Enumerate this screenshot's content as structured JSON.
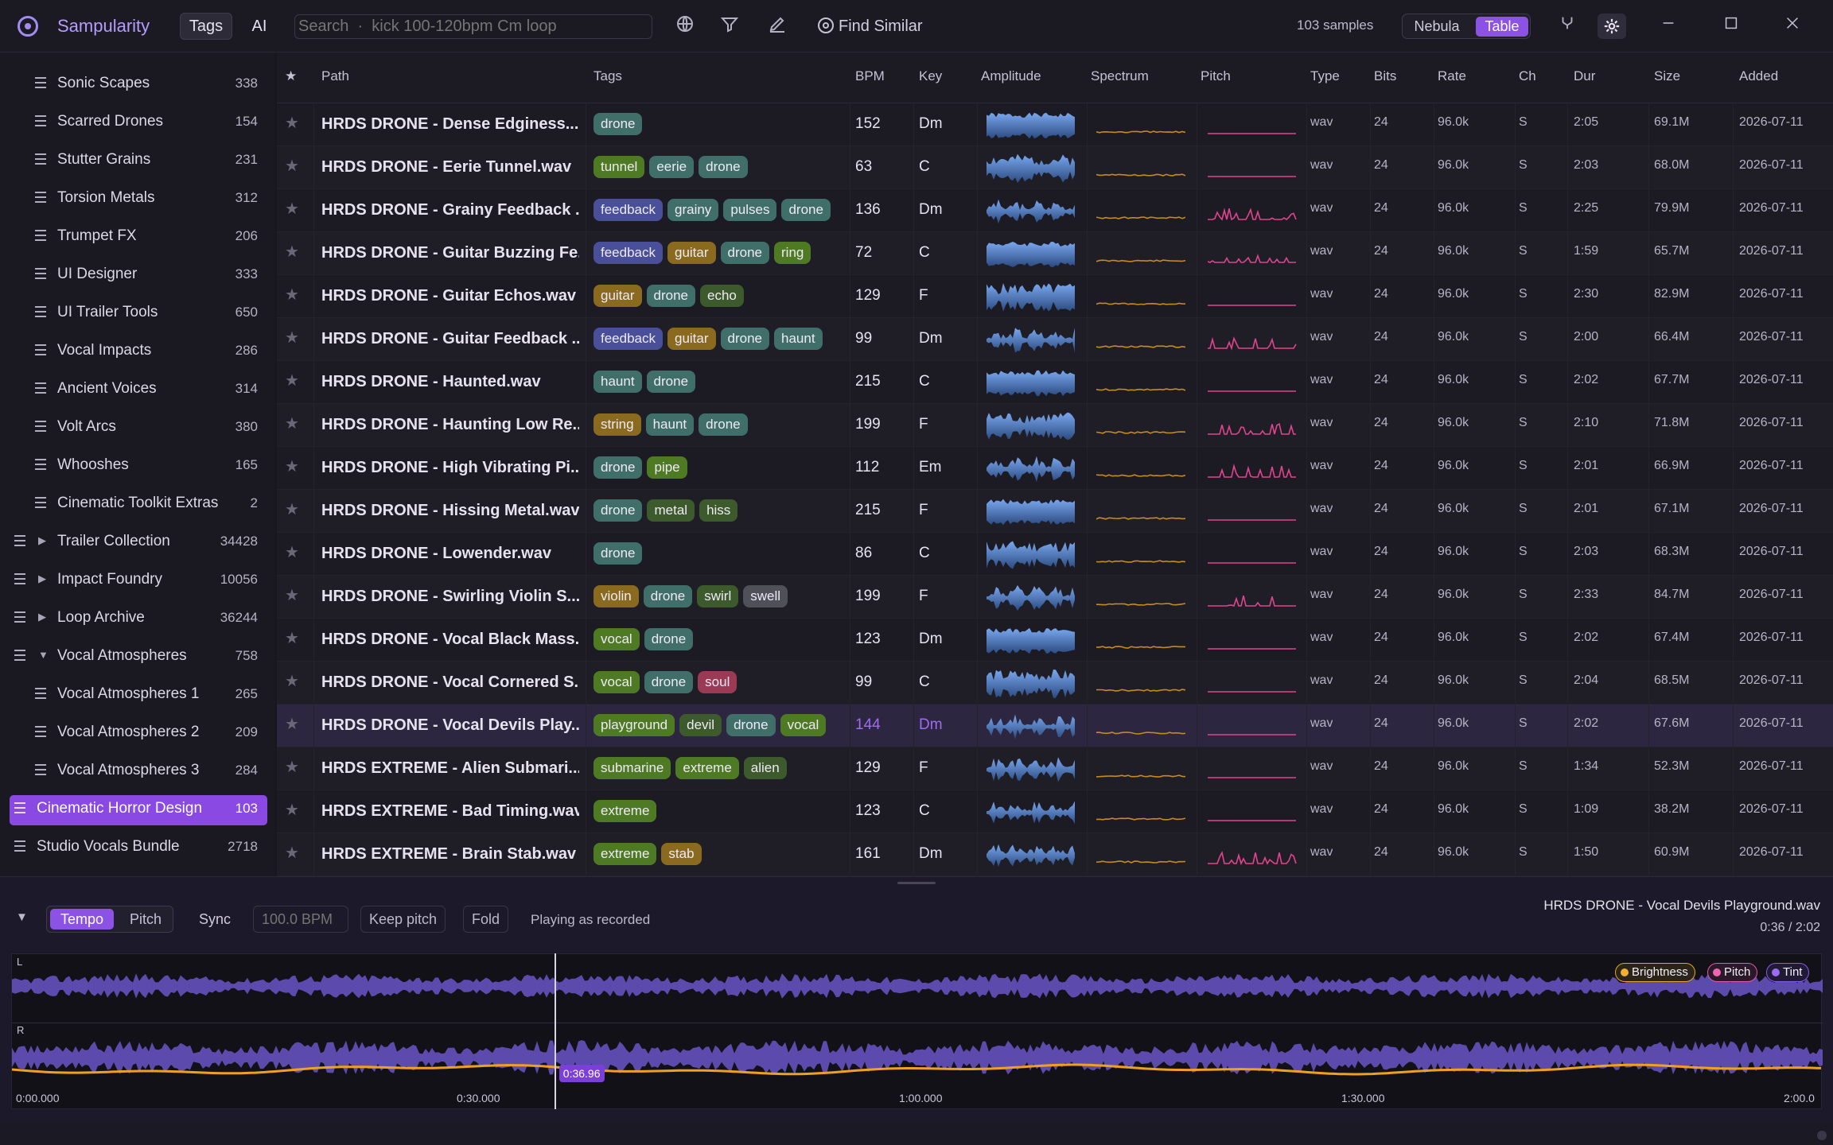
{
  "app": {
    "title": "Sampularity",
    "tags_button": "Tags",
    "ai_button": "AI",
    "search_placeholder": "Search  ·  kick 100-120bpm Cm loop",
    "find_similar": "Find Similar",
    "samples_count": "103 samples",
    "view_nebula": "Nebula",
    "view_table": "Table"
  },
  "sidebar": {
    "items": [
      {
        "label": "Sonic Scapes",
        "count": "338",
        "level": 2
      },
      {
        "label": "Scarred Drones",
        "count": "154",
        "level": 2
      },
      {
        "label": "Stutter Grains",
        "count": "231",
        "level": 2
      },
      {
        "label": "Torsion Metals",
        "count": "312",
        "level": 2
      },
      {
        "label": "Trumpet FX",
        "count": "206",
        "level": 2
      },
      {
        "label": "UI Designer",
        "count": "333",
        "level": 2
      },
      {
        "label": "UI Trailer Tools",
        "count": "650",
        "level": 2
      },
      {
        "label": "Vocal Impacts",
        "count": "286",
        "level": 2
      },
      {
        "label": "Ancient Voices",
        "count": "314",
        "level": 2
      },
      {
        "label": "Volt Arcs",
        "count": "380",
        "level": 2
      },
      {
        "label": "Whooshes",
        "count": "165",
        "level": 2
      },
      {
        "label": "Cinematic Toolkit Extras",
        "count": "2",
        "level": 2
      },
      {
        "label": "Trailer Collection",
        "count": "34428",
        "level": 1,
        "caret": "▶"
      },
      {
        "label": "Impact Foundry",
        "count": "10056",
        "level": 1,
        "caret": "▶"
      },
      {
        "label": "Loop Archive",
        "count": "36244",
        "level": 1,
        "caret": "▶"
      },
      {
        "label": "Vocal Atmospheres",
        "count": "758",
        "level": 1,
        "caret": "▼"
      },
      {
        "label": "Vocal Atmospheres 1",
        "count": "265",
        "level": 2
      },
      {
        "label": "Vocal Atmospheres 2",
        "count": "209",
        "level": 2
      },
      {
        "label": "Vocal Atmospheres 3",
        "count": "284",
        "level": 2
      },
      {
        "label": "Cinematic Horror Design",
        "count": "103",
        "level": 0,
        "active": true
      },
      {
        "label": "Studio Vocals Bundle",
        "count": "2718",
        "level": 0
      }
    ]
  },
  "table": {
    "columns": [
      "★",
      "Path",
      "Tags",
      "BPM",
      "Key",
      "Amplitude",
      "Spectrum",
      "Pitch",
      "Type",
      "Bits",
      "Rate",
      "Ch",
      "Dur",
      "Size",
      "Added"
    ],
    "rows": [
      {
        "path": "HRDS DRONE - Dense Edginess....",
        "tags": [
          "drone"
        ],
        "bpm": "152",
        "key": "Dm",
        "type": "wav",
        "bits": "24",
        "rate": "96.0k",
        "ch": "S",
        "dur": "2:05",
        "size": "69.1M",
        "added": "2026-07-11"
      },
      {
        "path": "HRDS DRONE - Eerie Tunnel.wav",
        "tags": [
          "tunnel",
          "eerie",
          "drone"
        ],
        "bpm": "63",
        "key": "C",
        "type": "wav",
        "bits": "24",
        "rate": "96.0k",
        "ch": "S",
        "dur": "2:03",
        "size": "68.0M",
        "added": "2026-07-11"
      },
      {
        "path": "HRDS DRONE - Grainy Feedback ...",
        "tags": [
          "feedback",
          "grainy",
          "pulses",
          "drone"
        ],
        "bpm": "136",
        "key": "Dm",
        "type": "wav",
        "bits": "24",
        "rate": "96.0k",
        "ch": "S",
        "dur": "2:25",
        "size": "79.9M",
        "added": "2026-07-11"
      },
      {
        "path": "HRDS DRONE - Guitar Buzzing Fe...",
        "tags": [
          "feedback",
          "guitar",
          "drone",
          "ring"
        ],
        "bpm": "72",
        "key": "C",
        "type": "wav",
        "bits": "24",
        "rate": "96.0k",
        "ch": "S",
        "dur": "1:59",
        "size": "65.7M",
        "added": "2026-07-11"
      },
      {
        "path": "HRDS DRONE - Guitar Echos.wav",
        "tags": [
          "guitar",
          "drone",
          "echo"
        ],
        "bpm": "129",
        "key": "F",
        "type": "wav",
        "bits": "24",
        "rate": "96.0k",
        "ch": "S",
        "dur": "2:30",
        "size": "82.9M",
        "added": "2026-07-11"
      },
      {
        "path": "HRDS DRONE - Guitar Feedback ...",
        "tags": [
          "feedback",
          "guitar",
          "drone",
          "haunt"
        ],
        "bpm": "99",
        "key": "Dm",
        "type": "wav",
        "bits": "24",
        "rate": "96.0k",
        "ch": "S",
        "dur": "2:00",
        "size": "66.4M",
        "added": "2026-07-11"
      },
      {
        "path": "HRDS DRONE - Haunted.wav",
        "tags": [
          "haunt",
          "drone"
        ],
        "bpm": "215",
        "key": "C",
        "type": "wav",
        "bits": "24",
        "rate": "96.0k",
        "ch": "S",
        "dur": "2:02",
        "size": "67.7M",
        "added": "2026-07-11"
      },
      {
        "path": "HRDS DRONE - Haunting Low Re...",
        "tags": [
          "string",
          "haunt",
          "drone"
        ],
        "bpm": "199",
        "key": "F",
        "type": "wav",
        "bits": "24",
        "rate": "96.0k",
        "ch": "S",
        "dur": "2:10",
        "size": "71.8M",
        "added": "2026-07-11"
      },
      {
        "path": "HRDS DRONE - High Vibrating Pi...",
        "tags": [
          "drone",
          "pipe"
        ],
        "bpm": "112",
        "key": "Em",
        "type": "wav",
        "bits": "24",
        "rate": "96.0k",
        "ch": "S",
        "dur": "2:01",
        "size": "66.9M",
        "added": "2026-07-11"
      },
      {
        "path": "HRDS DRONE - Hissing Metal.wav",
        "tags": [
          "drone",
          "metal",
          "hiss"
        ],
        "bpm": "215",
        "key": "F",
        "type": "wav",
        "bits": "24",
        "rate": "96.0k",
        "ch": "S",
        "dur": "2:01",
        "size": "67.1M",
        "added": "2026-07-11"
      },
      {
        "path": "HRDS DRONE - Lowender.wav",
        "tags": [
          "drone"
        ],
        "bpm": "86",
        "key": "C",
        "type": "wav",
        "bits": "24",
        "rate": "96.0k",
        "ch": "S",
        "dur": "2:03",
        "size": "68.3M",
        "added": "2026-07-11"
      },
      {
        "path": "HRDS DRONE - Swirling Violin S...",
        "tags": [
          "violin",
          "drone",
          "swirl",
          "swell"
        ],
        "bpm": "199",
        "key": "F",
        "type": "wav",
        "bits": "24",
        "rate": "96.0k",
        "ch": "S",
        "dur": "2:33",
        "size": "84.7M",
        "added": "2026-07-11"
      },
      {
        "path": "HRDS DRONE - Vocal Black Mass...",
        "tags": [
          "vocal",
          "drone"
        ],
        "bpm": "123",
        "key": "Dm",
        "type": "wav",
        "bits": "24",
        "rate": "96.0k",
        "ch": "S",
        "dur": "2:02",
        "size": "67.4M",
        "added": "2026-07-11"
      },
      {
        "path": "HRDS DRONE - Vocal Cornered S...",
        "tags": [
          "vocal",
          "drone",
          "soul"
        ],
        "bpm": "99",
        "key": "C",
        "type": "wav",
        "bits": "24",
        "rate": "96.0k",
        "ch": "S",
        "dur": "2:04",
        "size": "68.5M",
        "added": "2026-07-11"
      },
      {
        "path": "HRDS DRONE - Vocal Devils Play...",
        "tags": [
          "playground",
          "devil",
          "drone",
          "vocal"
        ],
        "bpm": "144",
        "key": "Dm",
        "type": "wav",
        "bits": "24",
        "rate": "96.0k",
        "ch": "S",
        "dur": "2:02",
        "size": "67.6M",
        "added": "2026-07-11",
        "selected": true
      },
      {
        "path": "HRDS EXTREME - Alien Submari...",
        "tags": [
          "submarine",
          "extreme",
          "alien"
        ],
        "bpm": "129",
        "key": "F",
        "type": "wav",
        "bits": "24",
        "rate": "96.0k",
        "ch": "S",
        "dur": "1:34",
        "size": "52.3M",
        "added": "2026-07-11"
      },
      {
        "path": "HRDS EXTREME - Bad Timing.wav",
        "tags": [
          "extreme"
        ],
        "bpm": "123",
        "key": "C",
        "type": "wav",
        "bits": "24",
        "rate": "96.0k",
        "ch": "S",
        "dur": "1:09",
        "size": "38.2M",
        "added": "2026-07-11"
      },
      {
        "path": "HRDS EXTREME - Brain Stab.wav",
        "tags": [
          "extreme",
          "stab"
        ],
        "bpm": "161",
        "key": "Dm",
        "type": "wav",
        "bits": "24",
        "rate": "96.0k",
        "ch": "S",
        "dur": "1:50",
        "size": "60.9M",
        "added": "2026-07-11"
      }
    ]
  },
  "player": {
    "tempo": "Tempo",
    "pitch": "Pitch",
    "sync": "Sync",
    "bpm_placeholder": "100.0 BPM",
    "keep_pitch": "Keep pitch",
    "fold": "Fold",
    "status": "Playing as recorded",
    "title": "HRDS DRONE - Vocal Devils Playground.wav",
    "time": "0:36  /  2:02",
    "channel_l": "L",
    "channel_r": "R",
    "playhead": "0:36.96",
    "playhead_fraction": 0.3,
    "chips": [
      "Brightness",
      "Pitch",
      "Tint"
    ],
    "ticks": [
      "0:00.000",
      "0:30.000",
      "1:00.000",
      "1:30.000",
      "2:00.0"
    ]
  }
}
